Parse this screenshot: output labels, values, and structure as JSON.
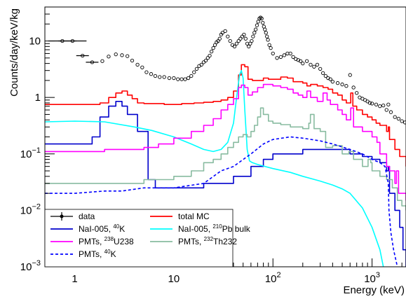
{
  "chart_data": {
    "type": "line",
    "xlabel": "Energy (keV)",
    "ylabel": "Counts/day/keV/kg",
    "xscale": "log",
    "yscale": "log",
    "xlim": [
      0.5,
      2200
    ],
    "ylim": [
      0.001,
      40
    ],
    "x_tick_labels": [
      {
        "value": 1,
        "label": "1"
      },
      {
        "value": 10,
        "label": "10"
      },
      {
        "value": 100,
        "base": "10",
        "exp": "2"
      },
      {
        "value": 1000,
        "base": "10",
        "exp": "3"
      }
    ],
    "y_tick_labels": [
      {
        "value": 10,
        "label": "10"
      },
      {
        "value": 1,
        "label": "1"
      },
      {
        "value": 0.1,
        "base": "10",
        "exp": "−1"
      },
      {
        "value": 0.01,
        "base": "10",
        "exp": "−2"
      },
      {
        "value": 0.001,
        "base": "10",
        "exp": "−3"
      }
    ],
    "grid": false,
    "legend_position": "bottom-left",
    "legend": [
      {
        "key": "data",
        "label": "data"
      },
      {
        "key": "total_mc",
        "label": "total MC"
      },
      {
        "key": "nai_k40",
        "label_pre": "NaI-005, ",
        "label_sup": "40",
        "label_post": "K"
      },
      {
        "key": "nai_pb210",
        "label_pre": "NaI-005, ",
        "label_sup": "210",
        "label_post": "Pb bulk"
      },
      {
        "key": "pmt_u238",
        "label_pre": "PMTs, ",
        "label_sup": "238",
        "label_post": "U238"
      },
      {
        "key": "pmt_th232",
        "label_pre": "PMTs, ",
        "label_sup": "232",
        "label_post": "Th232"
      },
      {
        "key": "pmt_k40",
        "label_pre": "PMTs, ",
        "label_sup": "40",
        "label_post": "K"
      }
    ],
    "series": [
      {
        "key": "data",
        "color": "#000000",
        "style": "markers",
        "x": [
          0.75,
          0.95,
          1.2,
          1.5,
          1.9,
          2.2,
          2.6,
          3.0,
          3.4,
          3.8,
          4.3,
          4.8,
          5.3,
          5.9,
          6.5,
          7.2,
          8,
          9,
          10,
          11,
          12,
          13,
          14,
          15,
          16,
          17,
          18,
          19,
          20,
          21,
          22,
          23,
          24,
          25,
          26,
          27,
          28,
          29,
          30,
          31,
          33,
          35,
          37,
          39,
          41,
          43,
          45,
          47,
          49,
          51,
          53,
          55,
          57,
          59,
          61,
          63,
          65,
          67,
          69,
          71,
          73,
          75,
          77,
          79,
          81,
          83,
          85,
          87,
          89,
          92,
          95,
          100,
          110,
          120,
          130,
          140,
          150,
          160,
          170,
          180,
          190,
          200,
          220,
          240,
          260,
          280,
          300,
          320,
          340,
          360,
          380,
          400,
          450,
          500,
          550,
          600,
          650,
          700,
          750,
          800,
          850,
          900,
          950,
          1000,
          1100,
          1200,
          1300,
          1400,
          1460,
          1550,
          1700,
          1850,
          2000,
          2150
        ],
        "y": [
          10,
          10,
          5.5,
          4.2,
          4.4,
          5.3,
          5.8,
          5.6,
          5.4,
          4.5,
          3.8,
          3.4,
          2.8,
          2.6,
          2.4,
          2.3,
          2.3,
          2.2,
          2.2,
          2.1,
          2.1,
          2.1,
          2.2,
          2.4,
          2.8,
          3.2,
          3.6,
          3.8,
          4.2,
          4.5,
          5.0,
          5.5,
          6.5,
          7.5,
          8.5,
          9.5,
          10,
          11,
          13,
          14,
          15,
          12,
          10,
          8.5,
          8,
          9,
          10,
          11,
          12,
          13,
          11,
          9,
          8,
          9,
          10,
          12,
          14,
          16,
          19,
          22,
          25,
          26,
          25,
          21,
          18,
          16,
          14,
          12,
          10.5,
          8.5,
          7.5,
          6.0,
          5.0,
          5.2,
          5.6,
          6.0,
          6.0,
          5.2,
          4.8,
          4.6,
          4.4,
          4.0,
          4.4,
          3.8,
          3.5,
          3.8,
          3.2,
          2.7,
          2.4,
          2.2,
          2.1,
          1.9,
          1.8,
          1.7,
          1.6,
          2.5,
          1.5,
          1.2,
          1.0,
          0.95,
          0.9,
          0.85,
          0.8,
          0.78,
          0.75,
          0.7,
          0.72,
          0.6,
          0.75,
          0.55,
          0.45,
          0.42,
          0.38,
          0.36
        ]
      },
      {
        "key": "total_mc",
        "color": "#ff0000",
        "style": "step",
        "x": [
          0.5,
          1.8,
          2.2,
          2.6,
          3.0,
          3.4,
          3.8,
          4.3,
          5,
          8,
          12,
          16,
          20,
          25,
          30,
          35,
          40,
          45,
          48,
          52,
          56,
          62,
          70,
          80,
          90,
          100,
          120,
          140,
          160,
          180,
          200,
          220,
          240,
          280,
          320,
          360,
          400,
          450,
          500,
          550,
          580,
          609,
          640,
          700,
          800,
          900,
          1000,
          1100,
          1200,
          1400,
          1460,
          1500,
          1700,
          1900,
          2200
        ],
        "y": [
          0.75,
          0.8,
          1.0,
          1.2,
          1.3,
          1.1,
          0.95,
          0.8,
          0.78,
          0.75,
          0.78,
          0.8,
          0.82,
          0.85,
          0.9,
          1.0,
          1.3,
          2.5,
          3.8,
          3.5,
          2.1,
          2.0,
          2.0,
          2.2,
          2.1,
          2.1,
          2.3,
          2.2,
          1.9,
          1.9,
          1.8,
          1.6,
          1.7,
          1.6,
          1.5,
          1.4,
          1.2,
          1.1,
          0.9,
          0.8,
          0.8,
          1.2,
          0.7,
          0.6,
          0.5,
          0.45,
          0.4,
          0.35,
          0.32,
          0.25,
          0.3,
          0.18,
          0.12,
          0.09,
          0.06
        ]
      },
      {
        "key": "nai_k40",
        "color": "#0000cc",
        "style": "step",
        "x": [
          0.5,
          1.5,
          1.8,
          2.2,
          2.6,
          3.0,
          3.4,
          3.8,
          4.3,
          5.5,
          6.5,
          10,
          20,
          40,
          60,
          80,
          100,
          200,
          400,
          600,
          800,
          1000,
          1200,
          1400,
          1460,
          1500,
          1700,
          1900,
          2050,
          2200
        ],
        "y": [
          0.15,
          0.2,
          0.45,
          0.7,
          0.85,
          0.7,
          0.5,
          0.5,
          0.25,
          0.035,
          0.025,
          0.025,
          0.03,
          0.04,
          0.06,
          0.08,
          0.1,
          0.12,
          0.12,
          0.1,
          0.09,
          0.08,
          0.07,
          0.05,
          0.06,
          0.02,
          0.01,
          0.005,
          0.002,
          0.001
        ]
      },
      {
        "key": "nai_pb210",
        "color": "#00ffff",
        "style": "line",
        "x": [
          0.5,
          1,
          2,
          4,
          6,
          10,
          15,
          20,
          25,
          30,
          35,
          40,
          43,
          46,
          48,
          50,
          52,
          55,
          58,
          62,
          70,
          100,
          150,
          200,
          300,
          400,
          500,
          600,
          800,
          1000,
          1200,
          1300,
          1400
        ],
        "y": [
          0.37,
          0.38,
          0.37,
          0.3,
          0.26,
          0.2,
          0.15,
          0.12,
          0.11,
          0.12,
          0.16,
          0.35,
          1.0,
          2.5,
          3.0,
          2.2,
          0.6,
          0.12,
          0.075,
          0.07,
          0.065,
          0.055,
          0.047,
          0.04,
          0.033,
          0.028,
          0.024,
          0.02,
          0.011,
          0.005,
          0.002,
          0.001,
          0.0005
        ]
      },
      {
        "key": "pmt_u238",
        "color": "#ff00ff",
        "style": "step",
        "x": [
          0.5,
          1,
          1.5,
          2,
          3,
          4,
          5,
          7,
          10,
          15,
          20,
          25,
          30,
          35,
          40,
          45,
          48,
          52,
          56,
          62,
          70,
          80,
          100,
          120,
          140,
          160,
          180,
          200,
          220,
          240,
          280,
          320,
          352,
          380,
          450,
          500,
          550,
          580,
          609,
          650,
          800,
          1000,
          1120,
          1200,
          1400,
          1500,
          1700,
          1764,
          1850,
          2000,
          2200
        ],
        "y": [
          0.11,
          0.11,
          0.11,
          0.12,
          0.12,
          0.12,
          0.13,
          0.15,
          0.19,
          0.25,
          0.32,
          0.42,
          0.6,
          0.75,
          0.95,
          1.5,
          1.65,
          1.5,
          1.1,
          1.25,
          1.5,
          1.7,
          1.6,
          1.5,
          1.4,
          1.2,
          1.1,
          1.0,
          1.3,
          1.0,
          0.85,
          1.2,
          0.9,
          0.75,
          0.6,
          0.5,
          0.4,
          0.4,
          0.65,
          0.3,
          0.25,
          0.2,
          0.16,
          0.1,
          0.06,
          0.05,
          0.03,
          0.05,
          0.02,
          0.02,
          0.015
        ]
      },
      {
        "key": "pmt_th232",
        "color": "#88bba0",
        "style": "step",
        "x": [
          0.5,
          1,
          2,
          5,
          10,
          15,
          20,
          25,
          30,
          35,
          40,
          45,
          50,
          55,
          60,
          65,
          70,
          75,
          80,
          90,
          100,
          120,
          150,
          200,
          230,
          239,
          260,
          300,
          340,
          400,
          500,
          583,
          650,
          800,
          911,
          969,
          1000,
          1200,
          1400,
          1600,
          1800,
          2000,
          2200
        ],
        "y": [
          0.03,
          0.03,
          0.03,
          0.035,
          0.04,
          0.05,
          0.07,
          0.08,
          0.1,
          0.13,
          0.16,
          0.2,
          0.22,
          0.2,
          0.25,
          0.32,
          0.45,
          0.65,
          0.5,
          0.38,
          0.35,
          0.33,
          0.3,
          0.28,
          0.35,
          0.5,
          0.28,
          0.25,
          0.13,
          0.14,
          0.1,
          0.11,
          0.08,
          0.06,
          0.08,
          0.07,
          0.05,
          0.04,
          0.035,
          0.025,
          0.015,
          0.012,
          0.01
        ]
      },
      {
        "key": "pmt_k40",
        "color": "#0000ff",
        "style": "dashed",
        "x": [
          0.5,
          1,
          2,
          3,
          5,
          10,
          20,
          30,
          40,
          60,
          80,
          100,
          150,
          200,
          300,
          400,
          600,
          800,
          1000,
          1200,
          1350,
          1460,
          1480,
          1550,
          1650,
          1800
        ],
        "y": [
          0.02,
          0.02,
          0.022,
          0.022,
          0.025,
          0.025,
          0.03,
          0.05,
          0.06,
          0.1,
          0.15,
          0.18,
          0.2,
          0.19,
          0.17,
          0.15,
          0.12,
          0.1,
          0.08,
          0.07,
          0.06,
          0.03,
          0.01,
          0.004,
          0.002,
          0.001
        ]
      }
    ]
  }
}
